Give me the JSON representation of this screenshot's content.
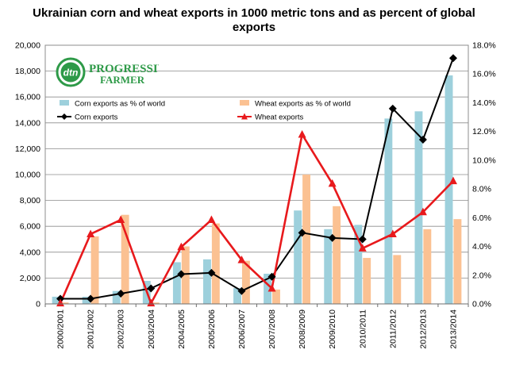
{
  "chart_data": {
    "type": "bar+line",
    "title_line1": "Ukrainian corn and wheat exports in 1000 metric tons and as percent of global",
    "title_line2": "exports",
    "categories": [
      "2000/2001",
      "2001/2002",
      "2002/2003",
      "2003/2004",
      "2004/2005",
      "2005/2006",
      "2006/2007",
      "2007/2008",
      "2008/2009",
      "2009/2010",
      "2010/2011",
      "2011/2012",
      "2012/2013",
      "2013/2014"
    ],
    "left_axis": {
      "min": 0,
      "max": 20000,
      "step": 2000,
      "tick_labels": [
        "0",
        "2,000",
        "4,000",
        "6,000",
        "8,000",
        "10,000",
        "12,000",
        "14,000",
        "16,000",
        "18,000",
        "20,000"
      ]
    },
    "right_axis": {
      "min": 0,
      "max": 18,
      "step": 2,
      "tick_labels": [
        "0.0%",
        "2.0%",
        "4.0%",
        "6.0%",
        "8.0%",
        "10.0%",
        "12.0%",
        "14.0%",
        "16.0%",
        "18.0%"
      ]
    },
    "bar_series": [
      {
        "name": "Corn exports  as % of world",
        "axis": "right",
        "color": "#9DD0DC",
        "values": [
          0.5,
          0.5,
          0.9,
          1.6,
          2.9,
          3.1,
          1.1,
          2.1,
          6.5,
          5.2,
          5.5,
          12.9,
          13.4,
          15.9
        ]
      },
      {
        "name": "Wheat exports  as % of world",
        "axis": "right",
        "color": "#FBC192",
        "values": [
          0.1,
          4.7,
          6.2,
          0.1,
          4.0,
          5.6,
          3.0,
          1.0,
          9.0,
          6.8,
          3.2,
          3.4,
          5.2,
          5.9
        ]
      }
    ],
    "line_series": [
      {
        "name": "Corn exports",
        "axis": "left",
        "color": "#000000",
        "marker": "diamond",
        "values": [
          400,
          400,
          800,
          1200,
          2300,
          2400,
          1000,
          2100,
          5500,
          5100,
          5000,
          15100,
          12700,
          19000
        ]
      },
      {
        "name": "Wheat exports",
        "axis": "left",
        "color": "#E8191C",
        "marker": "triangle",
        "values": [
          50,
          5400,
          6500,
          50,
          4400,
          6500,
          3400,
          1200,
          13100,
          9300,
          4300,
          5400,
          7100,
          9500
        ]
      }
    ],
    "grid": "horizontal",
    "legend": "top-left",
    "logo_text": "PROGRESSIVE FARMER",
    "logo_badge": "dtn"
  }
}
